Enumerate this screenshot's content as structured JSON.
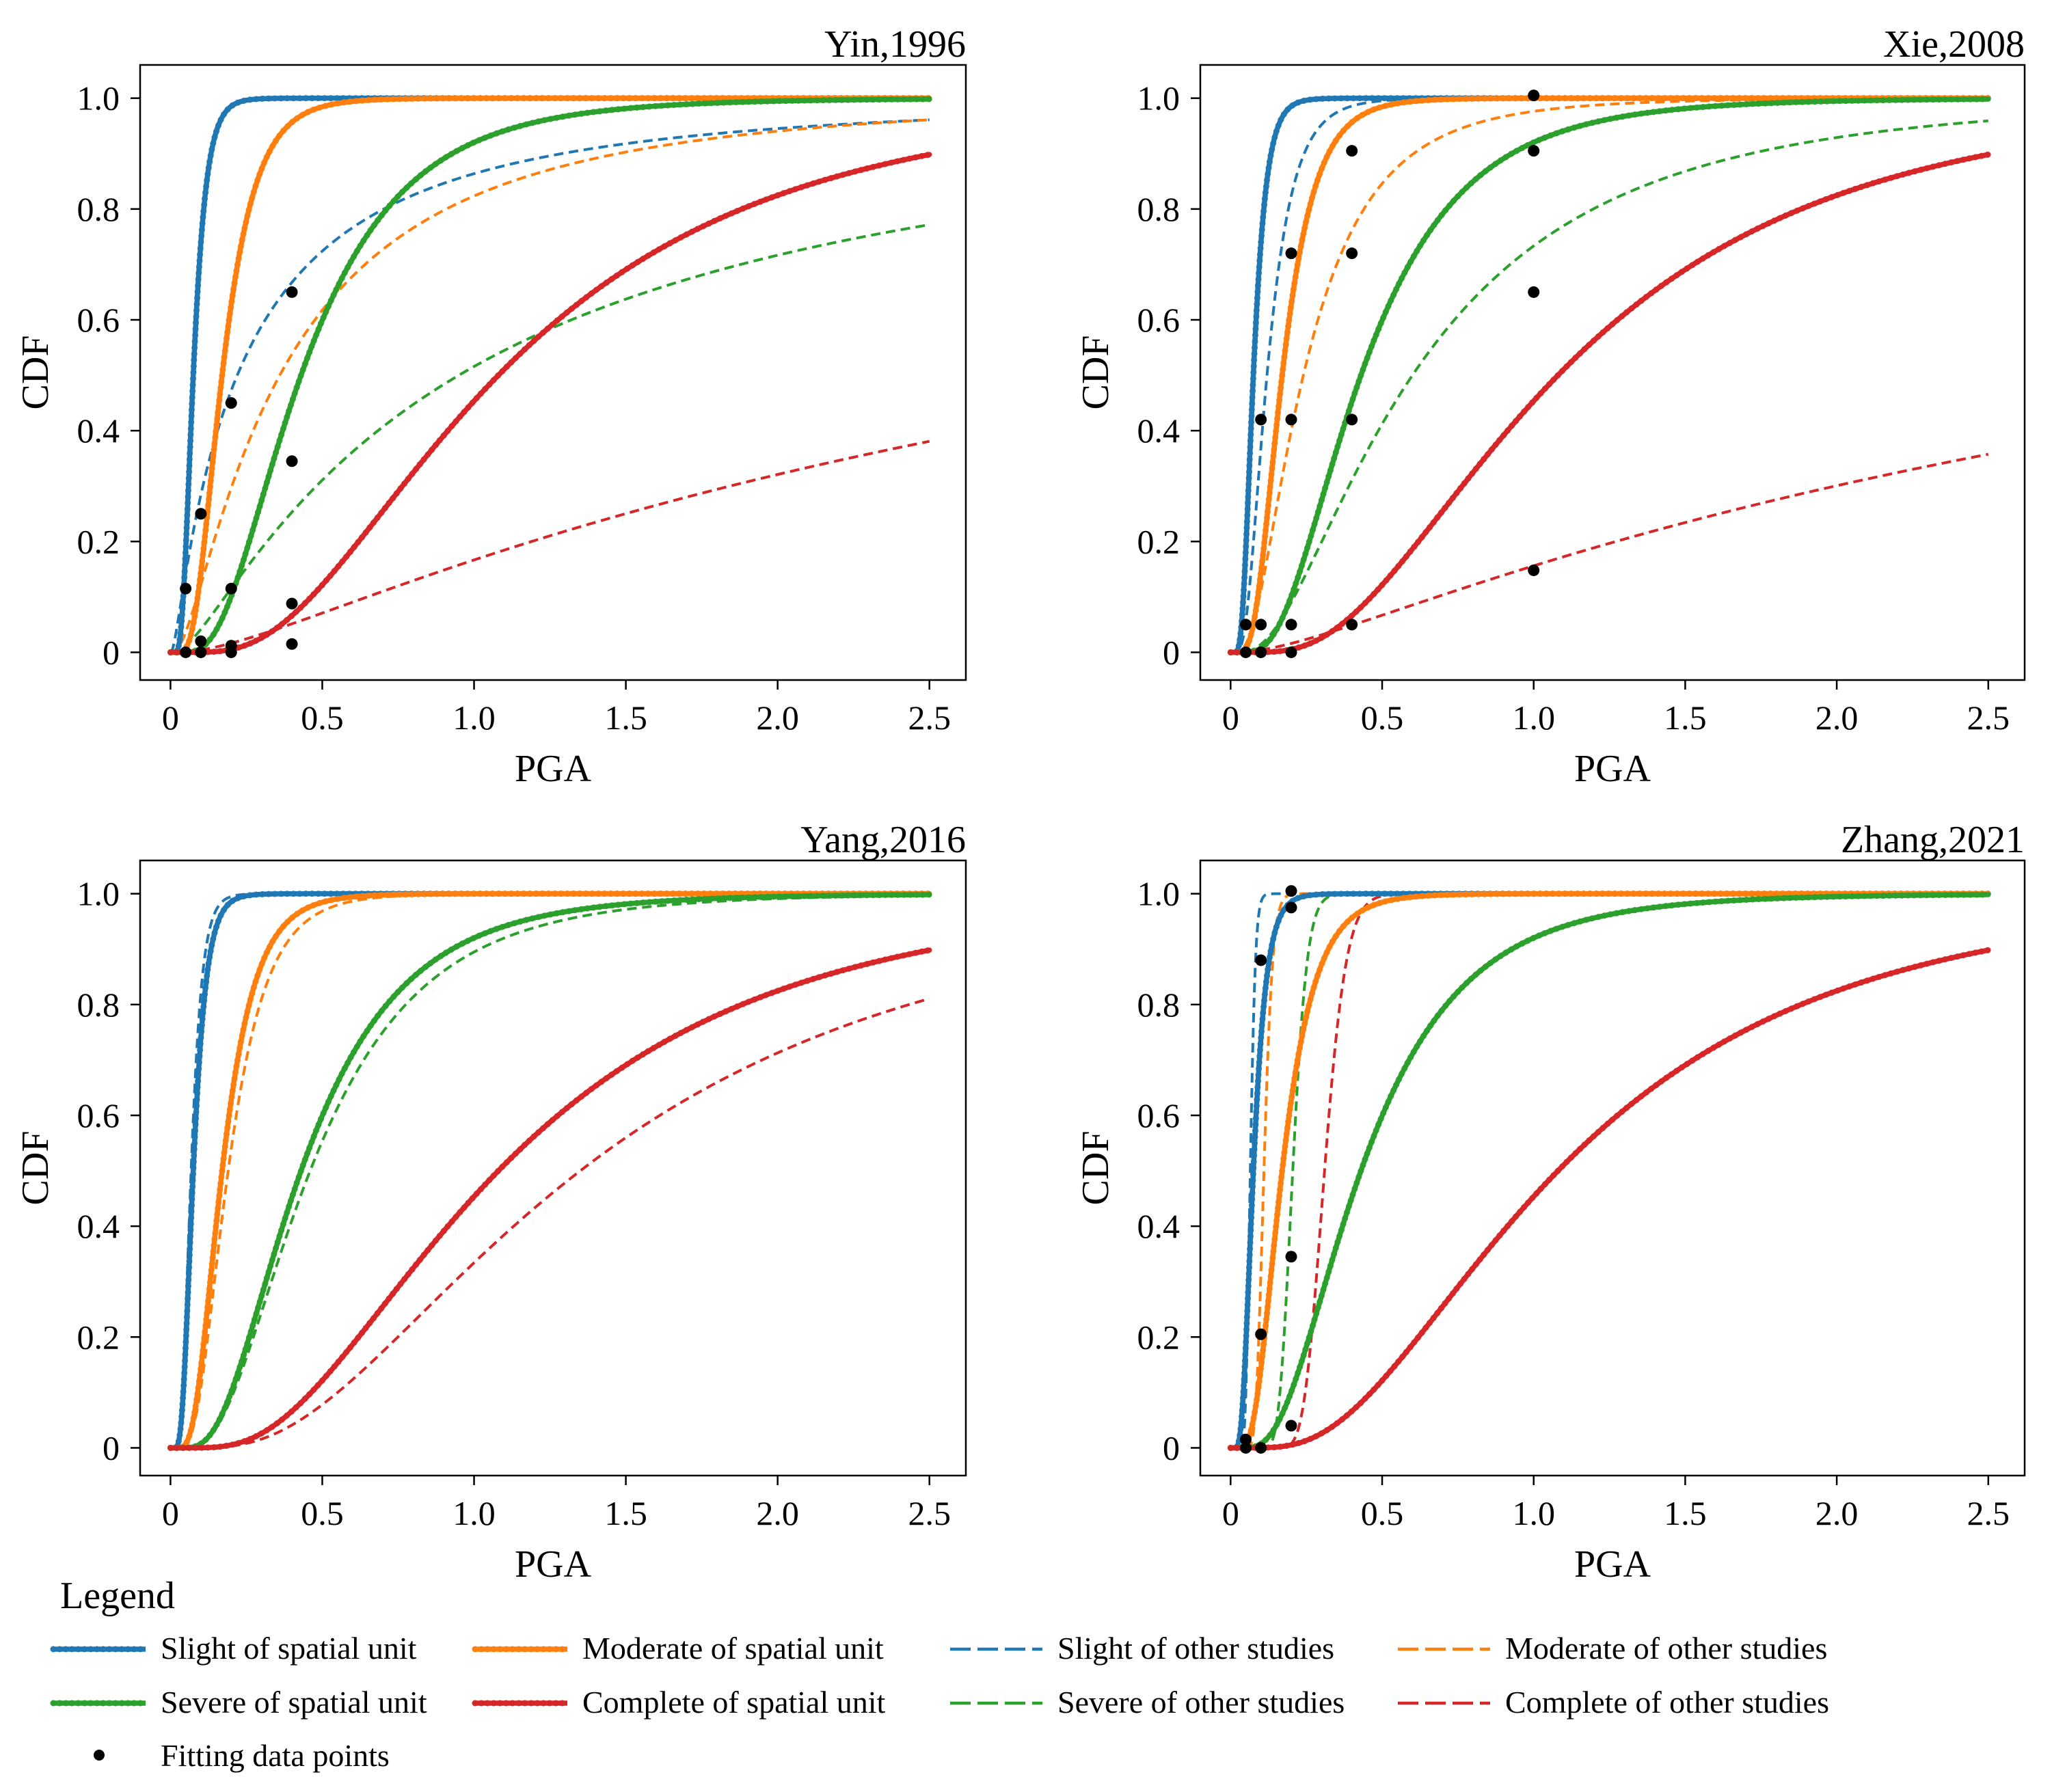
{
  "legend": {
    "title": "Legend",
    "items": [
      {
        "key": "slight_unit",
        "label": "Slight of spatial unit",
        "color": "#1f77b4",
        "style": "solid-dotted"
      },
      {
        "key": "moderate_unit",
        "label": "Moderate of spatial unit",
        "color": "#ff7f0e",
        "style": "solid-dotted"
      },
      {
        "key": "slight_other",
        "label": "Slight of other studies",
        "color": "#1f77b4",
        "style": "dashed"
      },
      {
        "key": "moderate_other",
        "label": "Moderate of other studies",
        "color": "#ff7f0e",
        "style": "dashed"
      },
      {
        "key": "severe_unit",
        "label": "Severe of spatial unit",
        "color": "#2ca02c",
        "style": "solid-dotted"
      },
      {
        "key": "complete_unit",
        "label": "Complete of spatial unit",
        "color": "#d62728",
        "style": "solid-dotted"
      },
      {
        "key": "severe_other",
        "label": "Severe of other studies",
        "color": "#2ca02c",
        "style": "dashed"
      },
      {
        "key": "complete_other",
        "label": "Complete of other studies",
        "color": "#d62728",
        "style": "dashed"
      },
      {
        "key": "fit_points",
        "label": "Fitting data points",
        "color": "#000000",
        "style": "marker"
      }
    ]
  },
  "chart_data": [
    {
      "type": "line",
      "title": "Yin,1996",
      "xlabel": "PGA",
      "ylabel": "CDF",
      "xlim": [
        -0.1,
        2.62
      ],
      "ylim": [
        -0.05,
        1.06
      ],
      "xticks": [
        0,
        0.5,
        1.0,
        1.5,
        2.0,
        2.5
      ],
      "xtick_labels": [
        "0",
        "0.5",
        "1.0",
        "1.5",
        "2.0",
        "2.5"
      ],
      "yticks": [
        0,
        0.2,
        0.4,
        0.6,
        0.8,
        1.0
      ],
      "ytick_labels": [
        "0",
        "0.2",
        "0.4",
        "0.6",
        "0.8",
        "1.0"
      ],
      "series": [
        {
          "name": "Slight of spatial unit",
          "dist": "lognormal",
          "median": 0.075,
          "beta": 0.45,
          "x_max": 2.5,
          "color": "#1f77b4",
          "style": "solid-dotted"
        },
        {
          "name": "Moderate of spatial unit",
          "dist": "lognormal",
          "median": 0.17,
          "beta": 0.5,
          "x_max": 2.5,
          "color": "#ff7f0e",
          "style": "solid-dotted"
        },
        {
          "name": "Severe of spatial unit",
          "dist": "lognormal",
          "median": 0.43,
          "beta": 0.6,
          "x_max": 2.5,
          "color": "#2ca02c",
          "style": "solid-dotted"
        },
        {
          "name": "Complete of spatial unit",
          "dist": "lognormal",
          "median": 1.08,
          "beta": 0.66,
          "x_max": 2.5,
          "color": "#d62728",
          "style": "solid-dotted"
        },
        {
          "name": "Slight of other studies",
          "dist": "lognormal",
          "median": 0.22,
          "beta": 1.38,
          "x_max": 2.5,
          "color": "#1f77b4",
          "style": "dashed"
        },
        {
          "name": "Moderate of other studies",
          "dist": "lognormal",
          "median": 0.36,
          "beta": 1.1,
          "x_max": 2.5,
          "color": "#ff7f0e",
          "style": "dashed"
        },
        {
          "name": "Severe of other studies",
          "dist": "lognormal",
          "median": 0.95,
          "beta": 1.3,
          "x_max": 2.5,
          "color": "#2ca02c",
          "style": "dashed"
        },
        {
          "name": "Complete of other studies",
          "dist": "lognormal",
          "median": 3.8,
          "beta": 1.38,
          "x_max": 2.5,
          "color": "#d62728",
          "style": "dashed"
        }
      ],
      "points": [
        [
          0.05,
          0.115
        ],
        [
          0.05,
          0.0
        ],
        [
          0.1,
          0.25
        ],
        [
          0.1,
          0.02
        ],
        [
          0.1,
          0.0
        ],
        [
          0.2,
          0.45
        ],
        [
          0.2,
          0.115
        ],
        [
          0.2,
          0.012
        ],
        [
          0.2,
          0.0
        ],
        [
          0.4,
          0.65
        ],
        [
          0.4,
          0.345
        ],
        [
          0.4,
          0.088
        ],
        [
          0.4,
          0.015
        ]
      ]
    },
    {
      "type": "line",
      "title": "Xie,2008",
      "xlabel": "PGA",
      "ylabel": "CDF",
      "xlim": [
        -0.1,
        2.62
      ],
      "ylim": [
        -0.05,
        1.06
      ],
      "xticks": [
        0,
        0.5,
        1.0,
        1.5,
        2.0,
        2.5
      ],
      "xtick_labels": [
        "0",
        "0.5",
        "1.0",
        "1.5",
        "2.0",
        "2.5"
      ],
      "yticks": [
        0,
        0.2,
        0.4,
        0.6,
        0.8,
        1.0
      ],
      "ytick_labels": [
        "0",
        "0.2",
        "0.4",
        "0.6",
        "0.8",
        "1.0"
      ],
      "series": [
        {
          "name": "Slight of spatial unit",
          "dist": "lognormal",
          "median": 0.075,
          "beta": 0.45,
          "x_max": 2.5,
          "color": "#1f77b4",
          "style": "solid-dotted"
        },
        {
          "name": "Moderate of spatial unit",
          "dist": "lognormal",
          "median": 0.17,
          "beta": 0.5,
          "x_max": 2.5,
          "color": "#ff7f0e",
          "style": "solid-dotted"
        },
        {
          "name": "Severe of spatial unit",
          "dist": "lognormal",
          "median": 0.43,
          "beta": 0.6,
          "x_max": 2.5,
          "color": "#2ca02c",
          "style": "solid-dotted"
        },
        {
          "name": "Complete of spatial unit",
          "dist": "lognormal",
          "median": 1.08,
          "beta": 0.66,
          "x_max": 2.5,
          "color": "#d62728",
          "style": "solid-dotted"
        },
        {
          "name": "Slight of other studies",
          "dist": "lognormal",
          "median": 0.12,
          "beta": 0.55,
          "x_max": 2.5,
          "color": "#1f77b4",
          "style": "dashed"
        },
        {
          "name": "Moderate of other studies",
          "dist": "lognormal",
          "median": 0.24,
          "beta": 0.72,
          "x_max": 2.5,
          "color": "#ff7f0e",
          "style": "dashed"
        },
        {
          "name": "Severe of other studies",
          "dist": "lognormal",
          "median": 0.6,
          "beta": 0.82,
          "x_max": 2.5,
          "color": "#2ca02c",
          "style": "dashed"
        },
        {
          "name": "Complete of other studies",
          "dist": "lognormal",
          "median": 4.2,
          "beta": 1.42,
          "x_max": 2.5,
          "color": "#d62728",
          "style": "dashed"
        }
      ],
      "points": [
        [
          0.05,
          0.05
        ],
        [
          0.05,
          0.0
        ],
        [
          0.1,
          0.42
        ],
        [
          0.1,
          0.05
        ],
        [
          0.1,
          0.0
        ],
        [
          0.2,
          0.72
        ],
        [
          0.2,
          0.42
        ],
        [
          0.2,
          0.05
        ],
        [
          0.2,
          0.0
        ],
        [
          0.4,
          0.905
        ],
        [
          0.4,
          0.72
        ],
        [
          0.4,
          0.42
        ],
        [
          0.4,
          0.05
        ],
        [
          1.0,
          1.005
        ],
        [
          1.0,
          0.905
        ],
        [
          1.0,
          0.65
        ],
        [
          1.0,
          0.148
        ]
      ]
    },
    {
      "type": "line",
      "title": "Yang,2016",
      "xlabel": "PGA",
      "ylabel": "CDF",
      "xlim": [
        -0.1,
        2.62
      ],
      "ylim": [
        -0.05,
        1.06
      ],
      "xticks": [
        0,
        0.5,
        1.0,
        1.5,
        2.0,
        2.5
      ],
      "xtick_labels": [
        "0",
        "0.5",
        "1.0",
        "1.5",
        "2.0",
        "2.5"
      ],
      "yticks": [
        0,
        0.2,
        0.4,
        0.6,
        0.8,
        1.0
      ],
      "ytick_labels": [
        "0",
        "0.2",
        "0.4",
        "0.6",
        "0.8",
        "1.0"
      ],
      "series": [
        {
          "name": "Slight of spatial unit",
          "dist": "lognormal",
          "median": 0.075,
          "beta": 0.45,
          "x_max": 2.5,
          "color": "#1f77b4",
          "style": "solid-dotted"
        },
        {
          "name": "Moderate of spatial unit",
          "dist": "lognormal",
          "median": 0.17,
          "beta": 0.5,
          "x_max": 2.5,
          "color": "#ff7f0e",
          "style": "solid-dotted"
        },
        {
          "name": "Severe of spatial unit",
          "dist": "lognormal",
          "median": 0.43,
          "beta": 0.6,
          "x_max": 2.5,
          "color": "#2ca02c",
          "style": "solid-dotted"
        },
        {
          "name": "Complete of spatial unit",
          "dist": "lognormal",
          "median": 1.08,
          "beta": 0.66,
          "x_max": 2.5,
          "color": "#d62728",
          "style": "solid-dotted"
        },
        {
          "name": "Slight of other studies",
          "dist": "lognormal",
          "median": 0.068,
          "beta": 0.42,
          "x_max": 2.5,
          "color": "#1f77b4",
          "style": "dashed"
        },
        {
          "name": "Moderate of other studies",
          "dist": "lognormal",
          "median": 0.19,
          "beta": 0.52,
          "x_max": 2.5,
          "color": "#ff7f0e",
          "style": "dashed"
        },
        {
          "name": "Severe of other studies",
          "dist": "lognormal",
          "median": 0.46,
          "beta": 0.62,
          "x_max": 2.5,
          "color": "#2ca02c",
          "style": "dashed"
        },
        {
          "name": "Complete of other studies",
          "dist": "lognormal",
          "median": 1.35,
          "beta": 0.7,
          "x_max": 2.5,
          "color": "#d62728",
          "style": "dashed"
        }
      ],
      "points": []
    },
    {
      "type": "line",
      "title": "Zhang,2021",
      "xlabel": "PGA",
      "ylabel": "CDF",
      "xlim": [
        -0.1,
        2.62
      ],
      "ylim": [
        -0.05,
        1.06
      ],
      "xticks": [
        0,
        0.5,
        1.0,
        1.5,
        2.0,
        2.5
      ],
      "xtick_labels": [
        "0",
        "0.5",
        "1.0",
        "1.5",
        "2.0",
        "2.5"
      ],
      "yticks": [
        0,
        0.2,
        0.4,
        0.6,
        0.8,
        1.0
      ],
      "ytick_labels": [
        "0",
        "0.2",
        "0.4",
        "0.6",
        "0.8",
        "1.0"
      ],
      "series": [
        {
          "name": "Slight of spatial unit",
          "dist": "lognormal",
          "median": 0.075,
          "beta": 0.45,
          "x_max": 2.5,
          "color": "#1f77b4",
          "style": "solid-dotted"
        },
        {
          "name": "Moderate of spatial unit",
          "dist": "lognormal",
          "median": 0.17,
          "beta": 0.5,
          "x_max": 2.5,
          "color": "#ff7f0e",
          "style": "solid-dotted"
        },
        {
          "name": "Severe of spatial unit",
          "dist": "lognormal",
          "median": 0.43,
          "beta": 0.6,
          "x_max": 2.5,
          "color": "#2ca02c",
          "style": "solid-dotted"
        },
        {
          "name": "Complete of spatial unit",
          "dist": "lognormal",
          "median": 1.08,
          "beta": 0.66,
          "x_max": 2.5,
          "color": "#d62728",
          "style": "solid-dotted"
        },
        {
          "name": "Slight of other studies",
          "dist": "lognormal",
          "median": 0.065,
          "beta": 0.2,
          "x_max": 2.5,
          "color": "#1f77b4",
          "style": "dashed"
        },
        {
          "name": "Moderate of other studies",
          "dist": "lognormal",
          "median": 0.11,
          "beta": 0.2,
          "x_max": 2.5,
          "color": "#ff7f0e",
          "style": "dashed"
        },
        {
          "name": "Severe of other studies",
          "dist": "lognormal",
          "median": 0.205,
          "beta": 0.18,
          "x_max": 2.5,
          "color": "#2ca02c",
          "style": "dashed"
        },
        {
          "name": "Complete of other studies",
          "dist": "lognormal",
          "median": 0.31,
          "beta": 0.18,
          "x_max": 2.5,
          "color": "#d62728",
          "style": "dashed"
        }
      ],
      "points": [
        [
          0.05,
          0.015
        ],
        [
          0.05,
          0.0
        ],
        [
          0.1,
          0.88
        ],
        [
          0.1,
          0.205
        ],
        [
          0.1,
          0.0
        ],
        [
          0.2,
          1.005
        ],
        [
          0.2,
          0.975
        ],
        [
          0.2,
          0.345
        ],
        [
          0.2,
          0.04
        ]
      ]
    }
  ]
}
